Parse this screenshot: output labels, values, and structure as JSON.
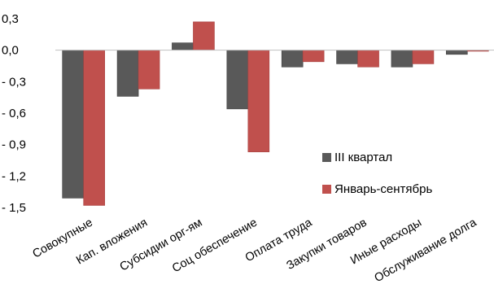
{
  "chart_data": {
    "type": "bar",
    "categories": [
      "Совокупные",
      "Кап. вложения",
      "Субсидии орг-ям",
      "Соц обеспечение",
      "Оплата труда",
      "Закупки товаров",
      "Иные расходы",
      "Обслуживание долга"
    ],
    "series": [
      {
        "name": "III квартал",
        "color": "#595959",
        "values": [
          -1.41,
          -0.44,
          0.07,
          -0.56,
          -0.16,
          -0.13,
          -0.16,
          -0.04
        ]
      },
      {
        "name": "Январь-сентябрь",
        "color": "#c0504d",
        "values": [
          -1.48,
          -0.37,
          0.27,
          -0.97,
          -0.11,
          -0.16,
          -0.13,
          -0.01
        ]
      }
    ],
    "yticks": [
      "0,3",
      "0,0",
      "- 0,3",
      "- 0,6",
      "- 0,9",
      "- 1,2",
      "- 1,5"
    ],
    "ytick_values": [
      0.3,
      0.0,
      -0.3,
      -0.6,
      -0.9,
      -1.2,
      -1.5
    ],
    "ylim": [
      -1.5,
      0.3
    ],
    "grid": false,
    "legend_position": "lower-right"
  }
}
